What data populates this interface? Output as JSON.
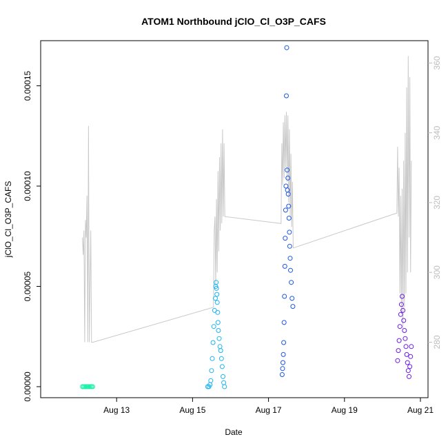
{
  "chart_data": {
    "type": "scatter",
    "title": "ATOM1 Northbound jClO_Cl_O3P_CAFS",
    "xlabel": "Date",
    "ylabel": "jClO_Cl_O3P_CAFS",
    "x_tick_labels": [
      "Aug 13",
      "Aug 15",
      "Aug 17",
      "Aug 19",
      "Aug 21"
    ],
    "x_tick_days": [
      13,
      15,
      17,
      19,
      21
    ],
    "xlim_days": [
      11.0,
      21.2
    ],
    "ylim": [
      -5.5e-06,
      0.0001725
    ],
    "y_ticks": [
      0.0,
      5e-05,
      0.0001,
      0.00015
    ],
    "y_tick_labels": [
      "0.00000",
      "0.00005",
      "0.00010",
      "0.00015"
    ],
    "y2_label": "",
    "y2lim": [
      264.1,
      366.4
    ],
    "y2_ticks": [
      280,
      300,
      320,
      340,
      360
    ],
    "y2_tick_labels": [
      "280",
      "300",
      "320",
      "340",
      "360"
    ],
    "line_color": "#c8c8c8",
    "line_series": [
      {
        "date": 12.1,
        "value": 310.0
      },
      {
        "date": 12.12,
        "value": 305.0
      },
      {
        "date": 12.14,
        "value": 312.0
      },
      {
        "date": 12.16,
        "value": 280.0
      },
      {
        "date": 12.18,
        "value": 315.0
      },
      {
        "date": 12.2,
        "value": 310.0
      },
      {
        "date": 12.22,
        "value": 322.0
      },
      {
        "date": 12.24,
        "value": 280.0
      },
      {
        "date": 12.26,
        "value": 342.0
      },
      {
        "date": 12.28,
        "value": 280.0
      },
      {
        "date": 12.32,
        "value": 312.0
      },
      {
        "date": 12.34,
        "value": 280.0
      },
      {
        "date": 12.38,
        "value": 280.0
      },
      {
        "date": 15.55,
        "value": 290.0
      },
      {
        "date": 15.57,
        "value": 312.0
      },
      {
        "date": 15.59,
        "value": 316.0
      },
      {
        "date": 15.61,
        "value": 296.0
      },
      {
        "date": 15.63,
        "value": 321.0
      },
      {
        "date": 15.65,
        "value": 300.0
      },
      {
        "date": 15.67,
        "value": 329.0
      },
      {
        "date": 15.69,
        "value": 306.0
      },
      {
        "date": 15.71,
        "value": 333.0
      },
      {
        "date": 15.73,
        "value": 312.0
      },
      {
        "date": 15.75,
        "value": 337.0
      },
      {
        "date": 15.77,
        "value": 314.0
      },
      {
        "date": 15.79,
        "value": 341.0
      },
      {
        "date": 15.81,
        "value": 316.0
      },
      {
        "date": 15.83,
        "value": 337.0
      },
      {
        "date": 15.85,
        "value": 316.0
      },
      {
        "date": 17.33,
        "value": 314.0
      },
      {
        "date": 17.35,
        "value": 337.0
      },
      {
        "date": 17.37,
        "value": 325.0
      },
      {
        "date": 17.39,
        "value": 343.0
      },
      {
        "date": 17.41,
        "value": 327.0
      },
      {
        "date": 17.43,
        "value": 345.0
      },
      {
        "date": 17.45,
        "value": 330.0
      },
      {
        "date": 17.47,
        "value": 346.0
      },
      {
        "date": 17.49,
        "value": 326.0
      },
      {
        "date": 17.51,
        "value": 345.0
      },
      {
        "date": 17.53,
        "value": 320.0
      },
      {
        "date": 17.55,
        "value": 341.0
      },
      {
        "date": 17.57,
        "value": 316.0
      },
      {
        "date": 17.59,
        "value": 334.0
      },
      {
        "date": 17.61,
        "value": 313.0
      },
      {
        "date": 17.63,
        "value": 326.0
      },
      {
        "date": 17.65,
        "value": 307.0
      },
      {
        "date": 20.38,
        "value": 317.0
      },
      {
        "date": 20.4,
        "value": 336.0
      },
      {
        "date": 20.42,
        "value": 316.0
      },
      {
        "date": 20.44,
        "value": 330.0
      },
      {
        "date": 20.46,
        "value": 294.0
      },
      {
        "date": 20.48,
        "value": 322.0
      },
      {
        "date": 20.5,
        "value": 288.0
      },
      {
        "date": 20.52,
        "value": 324.0
      },
      {
        "date": 20.54,
        "value": 284.0
      },
      {
        "date": 20.56,
        "value": 332.0
      },
      {
        "date": 20.58,
        "value": 290.0
      },
      {
        "date": 20.6,
        "value": 340.0
      },
      {
        "date": 20.62,
        "value": 294.0
      },
      {
        "date": 20.64,
        "value": 353.0
      },
      {
        "date": 20.66,
        "value": 300.0
      },
      {
        "date": 20.68,
        "value": 362.0
      },
      {
        "date": 20.7,
        "value": 310.0
      },
      {
        "date": 20.72,
        "value": 356.0
      },
      {
        "date": 20.74,
        "value": 300.0
      },
      {
        "date": 20.76,
        "value": 332.0
      }
    ],
    "series": [
      {
        "color": "#19f0a8",
        "points": [
          {
            "date": 12.1,
            "value": 0.0
          },
          {
            "date": 12.13,
            "value": 0.0
          },
          {
            "date": 12.16,
            "value": 0.0
          },
          {
            "date": 12.19,
            "value": 0.0
          },
          {
            "date": 12.22,
            "value": 0.0
          },
          {
            "date": 12.25,
            "value": 0.0
          },
          {
            "date": 12.28,
            "value": 0.0
          },
          {
            "date": 12.31,
            "value": 0.0
          },
          {
            "date": 12.34,
            "value": 0.0
          },
          {
            "date": 12.37,
            "value": 0.0
          }
        ]
      },
      {
        "color": "#19b4f0",
        "points": [
          {
            "date": 15.4,
            "value": 0.0
          },
          {
            "date": 15.43,
            "value": 0.0
          },
          {
            "date": 15.46,
            "value": 1e-06
          },
          {
            "date": 15.48,
            "value": 3e-06
          },
          {
            "date": 15.5,
            "value": 8e-06
          },
          {
            "date": 15.52,
            "value": 1.4e-05
          },
          {
            "date": 15.54,
            "value": 2.2e-05
          },
          {
            "date": 15.56,
            "value": 3e-05
          },
          {
            "date": 15.58,
            "value": 3.8e-05
          },
          {
            "date": 15.6,
            "value": 4.4e-05
          },
          {
            "date": 15.61,
            "value": 5e-05
          },
          {
            "date": 15.62,
            "value": 5.2e-05
          },
          {
            "date": 15.63,
            "value": 4.9e-05
          },
          {
            "date": 15.64,
            "value": 4.6e-05
          },
          {
            "date": 15.65,
            "value": 4.2e-05
          },
          {
            "date": 15.66,
            "value": 3.7e-05
          },
          {
            "date": 15.67,
            "value": 3.2e-05
          },
          {
            "date": 15.68,
            "value": 2.8e-05
          },
          {
            "date": 15.7,
            "value": 2.4e-05
          },
          {
            "date": 15.72,
            "value": 2e-05
          },
          {
            "date": 15.74,
            "value": 1.8e-05
          },
          {
            "date": 15.76,
            "value": 1.4e-05
          },
          {
            "date": 15.78,
            "value": 1e-05
          },
          {
            "date": 15.8,
            "value": 5e-06
          },
          {
            "date": 15.82,
            "value": 2e-06
          },
          {
            "date": 15.84,
            "value": 0.0
          }
        ]
      },
      {
        "color": "#1955e6",
        "points": [
          {
            "date": 17.36,
            "value": 6e-06
          },
          {
            "date": 17.37,
            "value": 9e-06
          },
          {
            "date": 17.38,
            "value": 1.2e-05
          },
          {
            "date": 17.39,
            "value": 1.6e-05
          },
          {
            "date": 17.4,
            "value": 2.2e-05
          },
          {
            "date": 17.41,
            "value": 3.2e-05
          },
          {
            "date": 17.42,
            "value": 4.5e-05
          },
          {
            "date": 17.43,
            "value": 6e-05
          },
          {
            "date": 17.44,
            "value": 7.4e-05
          },
          {
            "date": 17.45,
            "value": 8.8e-05
          },
          {
            "date": 17.46,
            "value": 0.0001
          },
          {
            "date": 17.47,
            "value": 0.000145
          },
          {
            "date": 17.48,
            "value": 0.000169
          },
          {
            "date": 17.49,
            "value": 0.000108
          },
          {
            "date": 17.5,
            "value": 9.8e-05
          },
          {
            "date": 17.51,
            "value": 0.000104
          },
          {
            "date": 17.52,
            "value": 9.6e-05
          },
          {
            "date": 17.53,
            "value": 9e-05
          },
          {
            "date": 17.54,
            "value": 8.4e-05
          },
          {
            "date": 17.55,
            "value": 7.7e-05
          },
          {
            "date": 17.56,
            "value": 7e-05
          },
          {
            "date": 17.57,
            "value": 6.4e-05
          },
          {
            "date": 17.58,
            "value": 5.8e-05
          },
          {
            "date": 17.6,
            "value": 5.2e-05
          },
          {
            "date": 17.62,
            "value": 4.4e-05
          },
          {
            "date": 17.64,
            "value": 4e-05
          }
        ]
      },
      {
        "color": "#6e19e6",
        "points": [
          {
            "date": 20.4,
            "value": 1.3e-05
          },
          {
            "date": 20.42,
            "value": 1.8e-05
          },
          {
            "date": 20.44,
            "value": 2.3e-05
          },
          {
            "date": 20.46,
            "value": 3e-05
          },
          {
            "date": 20.48,
            "value": 3.6e-05
          },
          {
            "date": 20.5,
            "value": 4.1e-05
          },
          {
            "date": 20.52,
            "value": 4.5e-05
          },
          {
            "date": 20.54,
            "value": 3.8e-05
          },
          {
            "date": 20.56,
            "value": 3.3e-05
          },
          {
            "date": 20.58,
            "value": 2.8e-05
          },
          {
            "date": 20.6,
            "value": 2.4e-05
          },
          {
            "date": 20.62,
            "value": 2e-05
          },
          {
            "date": 20.64,
            "value": 1.6e-05
          },
          {
            "date": 20.66,
            "value": 1.2e-05
          },
          {
            "date": 20.68,
            "value": 8e-06
          },
          {
            "date": 20.7,
            "value": 5e-06
          },
          {
            "date": 20.72,
            "value": 1e-05
          },
          {
            "date": 20.74,
            "value": 1.5e-05
          },
          {
            "date": 20.76,
            "value": 2e-05
          }
        ]
      }
    ]
  }
}
